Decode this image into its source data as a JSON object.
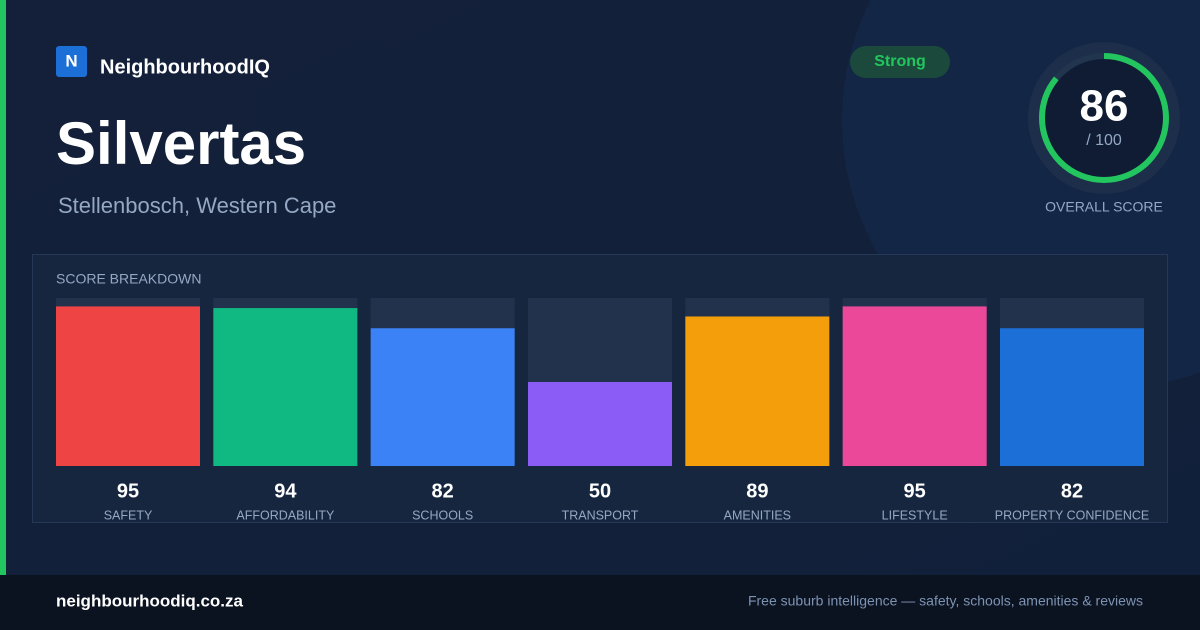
{
  "brand": {
    "logo_letter": "N",
    "name": "NeighbourhoodIQ"
  },
  "badge": "Strong",
  "suburb": "Silvertas",
  "location": "Stellenbosch, Western Cape",
  "overall": {
    "score": 86,
    "max": {
      "value": 100,
      "label": "/ 100"
    },
    "label": "OVERALL SCORE"
  },
  "breakdown": {
    "title": "SCORE BREAKDOWN",
    "ylim": [
      0,
      100
    ],
    "categories": [
      "SAFETY",
      "AFFORDABILITY",
      "SCHOOLS",
      "TRANSPORT",
      "AMENITIES",
      "LIFESTYLE",
      "PROPERTY CONFIDENCE"
    ],
    "values": [
      95,
      94,
      82,
      50,
      89,
      95,
      82
    ],
    "colors": [
      "#ef4444",
      "#10b981",
      "#3b82f6",
      "#8b5cf6",
      "#f59e0b",
      "#ec4899",
      "#1d6fd8"
    ]
  },
  "footer": {
    "url": "neighbourhoodiq.co.za",
    "tagline": "Free suburb intelligence — safety, schools, amenities & reviews"
  }
}
